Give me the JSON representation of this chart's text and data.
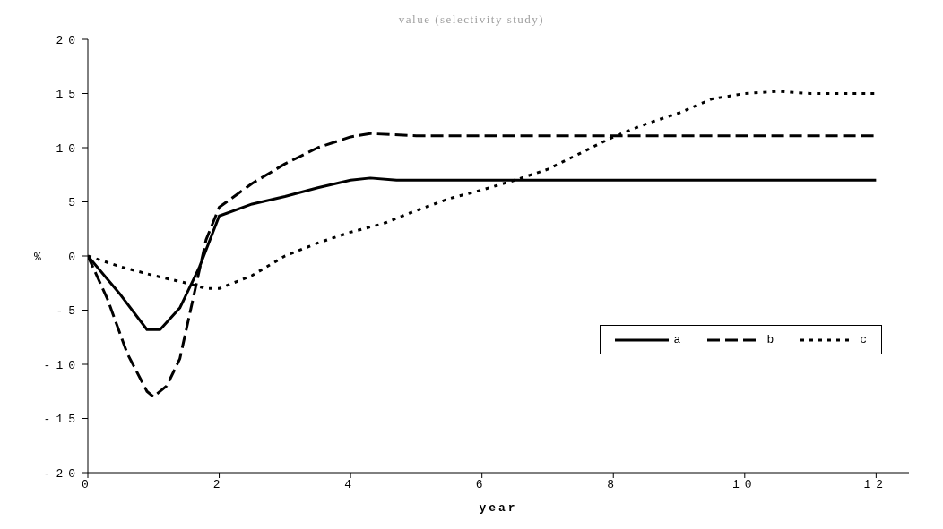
{
  "chart_data": {
    "type": "line",
    "title": "value (selectivity study)",
    "xlabel": "year",
    "ylabel": "%",
    "xlim": [
      0,
      12.5
    ],
    "xticks": [
      0,
      2,
      4,
      6,
      8,
      10,
      12
    ],
    "ylim": [
      -20,
      20
    ],
    "yticks": [
      -20,
      -15,
      -10,
      -5,
      0,
      5,
      10,
      15,
      20
    ],
    "grid": false,
    "legend": "right",
    "marker": "none",
    "series": [
      {
        "name": "a",
        "color": "#000000",
        "line_style": "solid",
        "x": [
          0,
          0.5,
          0.9,
          1.1,
          1.4,
          1.7,
          2,
          2.5,
          3,
          3.5,
          4,
          4.3,
          4.7,
          12
        ],
        "values": [
          0,
          -3.6,
          -6.8,
          -6.8,
          -4.8,
          -1,
          3.7,
          4.8,
          5.5,
          6.3,
          7,
          7.2,
          7,
          7
        ]
      },
      {
        "name": "b",
        "color": "#000000",
        "line_style": "dashed",
        "x": [
          0,
          0.3,
          0.6,
          0.9,
          1,
          1.2,
          1.4,
          1.6,
          1.8,
          2,
          2.5,
          3,
          3.5,
          4,
          4.3,
          5,
          12
        ],
        "values": [
          0,
          -4,
          -9,
          -12.5,
          -13,
          -12,
          -9.5,
          -4,
          1.5,
          4.5,
          6.7,
          8.5,
          10,
          11,
          11.3,
          11.1,
          11.1
        ]
      },
      {
        "name": "c",
        "color": "#000000",
        "line_style": "dotted",
        "x": [
          0,
          0.5,
          1,
          1.5,
          1.8,
          2,
          2.5,
          3,
          3.5,
          4,
          4.5,
          5,
          5.5,
          6,
          6.5,
          7,
          7.5,
          8,
          8.5,
          9,
          9.5,
          10,
          10.5,
          11,
          12
        ],
        "values": [
          0,
          -1,
          -1.8,
          -2.5,
          -3,
          -3,
          -1.8,
          0,
          1.2,
          2.2,
          3,
          4.2,
          5.3,
          6.1,
          7,
          8,
          9.5,
          11,
          12.2,
          13.2,
          14.5,
          15,
          15.2,
          15,
          15
        ]
      }
    ]
  }
}
